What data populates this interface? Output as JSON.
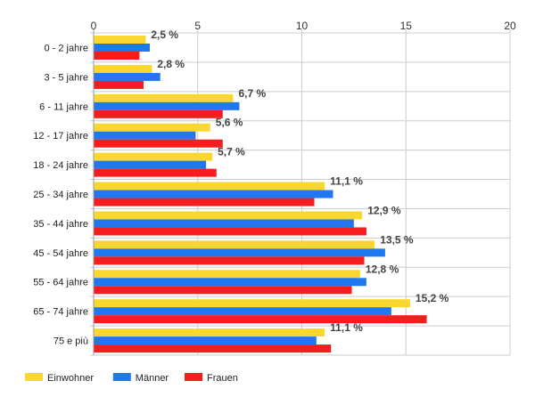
{
  "chart_data": {
    "type": "bar",
    "orientation": "horizontal",
    "categories": [
      "0 - 2 jahre",
      "3 - 5 jahre",
      "6 - 11 jahre",
      "12 - 17 jahre",
      "18 - 24 jahre",
      "25 - 34 jahre",
      "35 - 44 jahre",
      "45 - 54 jahre",
      "55 - 64 jahre",
      "65 - 74 jahre",
      "75 e più"
    ],
    "series": [
      {
        "name": "Einwohner",
        "color": "#f9d72f",
        "values": [
          2.5,
          2.8,
          6.7,
          5.6,
          5.7,
          11.1,
          12.9,
          13.5,
          12.8,
          15.2,
          11.1
        ],
        "labels": [
          "2,5 %",
          "2,8 %",
          "6,7 %",
          "5,6 %",
          "5,7 %",
          "11,1 %",
          "12,9 %",
          "13,5 %",
          "12,8 %",
          "15,2 %",
          "11,1 %"
        ]
      },
      {
        "name": "Männer",
        "color": "#1f78f0",
        "values": [
          2.7,
          3.2,
          7.0,
          4.9,
          5.4,
          11.5,
          12.5,
          14.0,
          13.1,
          14.3,
          10.7
        ]
      },
      {
        "name": "Frauen",
        "color": "#f51d1d",
        "values": [
          2.2,
          2.4,
          6.2,
          6.2,
          5.9,
          10.6,
          13.1,
          13.0,
          12.4,
          16.0,
          11.4
        ]
      }
    ],
    "xlim": [
      0,
      20
    ],
    "xticks": [
      "0",
      "5",
      "10",
      "15",
      "20"
    ],
    "grid": true,
    "legend_position": "bottom-left"
  }
}
